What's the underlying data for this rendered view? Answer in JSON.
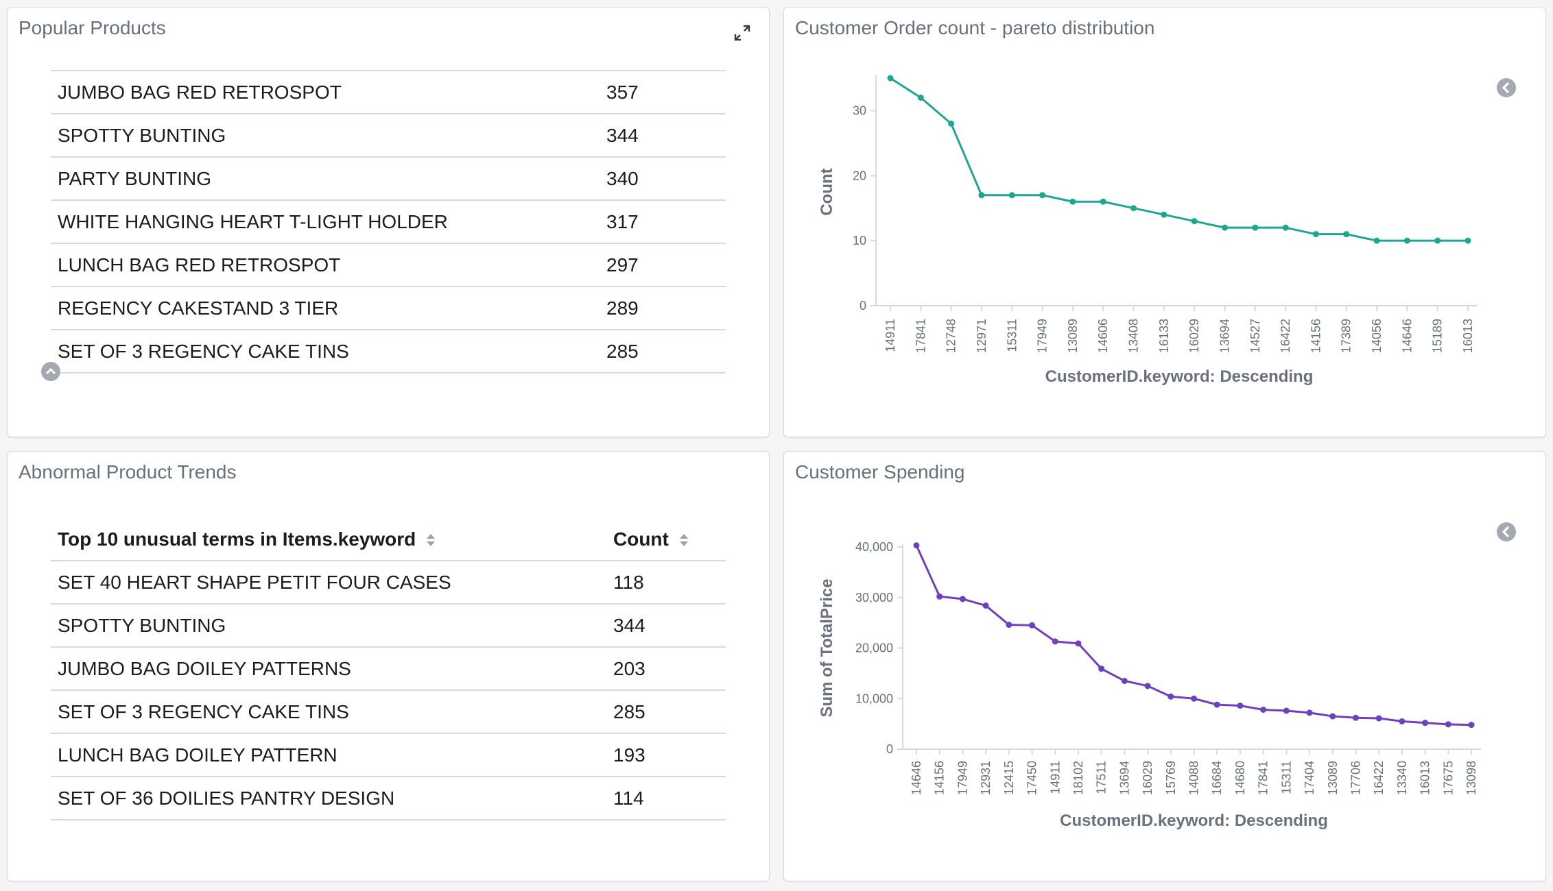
{
  "popular_products": {
    "title": "Popular Products",
    "rows": [
      {
        "name": "JUMBO BAG RED RETROSPOT",
        "count": "357"
      },
      {
        "name": "SPOTTY BUNTING",
        "count": "344"
      },
      {
        "name": "PARTY BUNTING",
        "count": "340"
      },
      {
        "name": "WHITE HANGING HEART T-LIGHT HOLDER",
        "count": "317"
      },
      {
        "name": "LUNCH BAG RED RETROSPOT",
        "count": "297"
      },
      {
        "name": "REGENCY CAKESTAND 3 TIER",
        "count": "289"
      },
      {
        "name": "SET OF 3 REGENCY CAKE TINS",
        "count": "285"
      }
    ]
  },
  "abnormal_trends": {
    "title": "Abnormal Product Trends",
    "col_term": "Top 10 unusual terms in Items.keyword",
    "col_count": "Count",
    "rows": [
      {
        "name": "SET 40 HEART SHAPE PETIT FOUR CASES",
        "count": "118"
      },
      {
        "name": "SPOTTY BUNTING",
        "count": "344"
      },
      {
        "name": "JUMBO BAG DOILEY PATTERNS",
        "count": "203"
      },
      {
        "name": "SET OF 3 REGENCY CAKE TINS",
        "count": "285"
      },
      {
        "name": "LUNCH BAG DOILEY PATTERN",
        "count": "193"
      },
      {
        "name": "SET OF 36 DOILIES PANTRY DESIGN",
        "count": "114"
      }
    ]
  },
  "order_count_panel": {
    "title": "Customer Order count - pareto distribution"
  },
  "spending_panel": {
    "title": "Customer Spending"
  },
  "icons": {
    "expand": "expand-arrows-icon",
    "collapse": "chevron-up-circle-icon",
    "legend": "chevron-left-circle-icon",
    "sort": "sort-arrows-icon"
  },
  "chart_data": [
    {
      "type": "line",
      "title": "Customer Order count - pareto distribution",
      "xlabel": "CustomerID.keyword: Descending",
      "ylabel": "Count",
      "ylim": [
        0,
        35
      ],
      "yticks": [
        0,
        10,
        20,
        30
      ],
      "color": "#1ea593",
      "categories": [
        "14911",
        "17841",
        "12748",
        "12971",
        "15311",
        "17949",
        "13089",
        "14606",
        "13408",
        "16133",
        "16029",
        "13694",
        "14527",
        "16422",
        "14156",
        "17389",
        "14056",
        "14646",
        "15189",
        "16013"
      ],
      "values": [
        35,
        32,
        28,
        17,
        17,
        17,
        16,
        16,
        15,
        14,
        13,
        12,
        12,
        12,
        11,
        11,
        10,
        10,
        10,
        10
      ],
      "grid": false,
      "legend": "hidden"
    },
    {
      "type": "line",
      "title": "Customer Spending",
      "xlabel": "CustomerID.keyword: Descending",
      "ylabel": "Sum of TotalPrice",
      "ylim": [
        0,
        40000
      ],
      "yticks": [
        "0",
        "10,000",
        "20,000",
        "30,000",
        "40,000"
      ],
      "color": "#6f3fbd",
      "categories": [
        "14646",
        "14156",
        "17949",
        "12931",
        "12415",
        "17450",
        "14911",
        "18102",
        "17511",
        "13694",
        "16029",
        "15769",
        "14088",
        "16684",
        "14680",
        "17841",
        "15311",
        "17404",
        "13089",
        "17706",
        "16422",
        "13340",
        "16013",
        "17675",
        "13098"
      ],
      "values": [
        40300,
        30200,
        29700,
        28400,
        24600,
        24500,
        21300,
        20900,
        15900,
        13500,
        12500,
        10400,
        10000,
        8800,
        8600,
        7800,
        7600,
        7200,
        6500,
        6200,
        6100,
        5500,
        5200,
        4900,
        4800
      ],
      "grid": false,
      "legend": "hidden"
    }
  ]
}
